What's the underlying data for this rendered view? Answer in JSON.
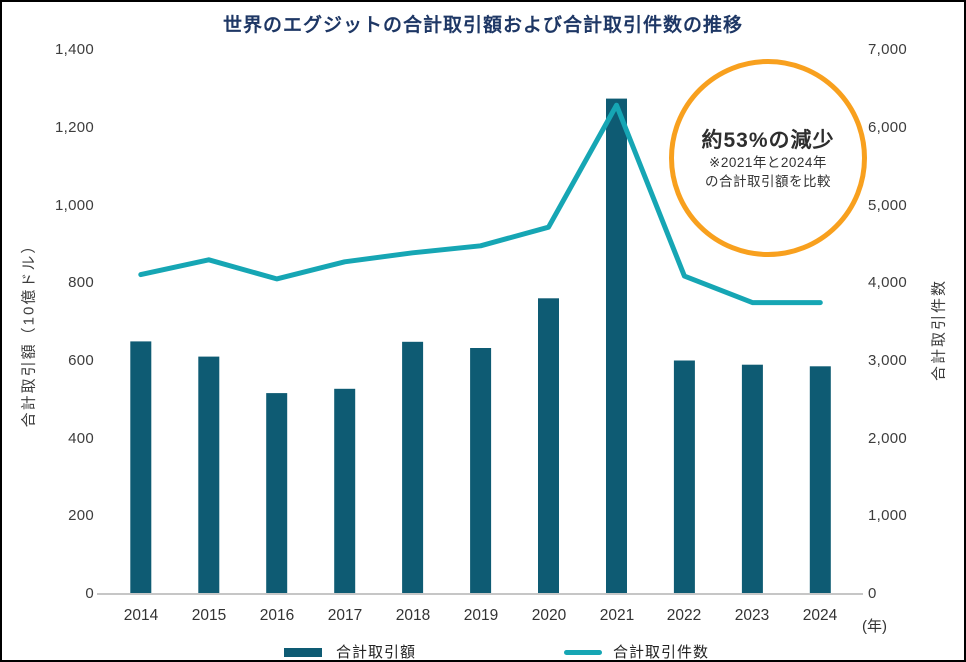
{
  "title": {
    "text": "世界のエグジットの合計取引額および合計取引件数の推移",
    "color": "#1e3765"
  },
  "annotation": {
    "headline": "約53%の減少",
    "note_line1": "※2021年と2024年",
    "note_line2": "の合計取引額を比較",
    "circle_color": "#f8a01e"
  },
  "axes": {
    "left": {
      "title": "合計取引額（10億ドル）",
      "ticks": [
        "1,400",
        "1,200",
        "1,000",
        "800",
        "600",
        "400",
        "200",
        "0"
      ]
    },
    "right": {
      "title": "合計取引件数",
      "ticks": [
        "7,000",
        "6,000",
        "5,000",
        "4,000",
        "3,000",
        "2,000",
        "1,000",
        "0"
      ]
    },
    "x": {
      "labels": [
        "2014",
        "2015",
        "2016",
        "2017",
        "2018",
        "2019",
        "2020",
        "2021",
        "2022",
        "2023",
        "2024"
      ],
      "unit": "(年)"
    }
  },
  "legend": {
    "bar_label": "合計取引額",
    "line_label": "合計取引件数"
  },
  "colors": {
    "bar": "#0e5b73",
    "line": "#16a6b4",
    "title_text": "#1e3765",
    "baseline": "#c6c6c6"
  },
  "chart_data": {
    "type": "bar",
    "title": "世界のエグジットの合計取引額および合計取引件数の推移",
    "categories": [
      2014,
      2015,
      2016,
      2017,
      2018,
      2019,
      2020,
      2021,
      2022,
      2023,
      2024
    ],
    "xlabel": "(年)",
    "grid": false,
    "legend_position": "bottom",
    "series": [
      {
        "name": "合計取引額",
        "type": "bar",
        "axis": "left",
        "axis_label": "合計取引額（10億ドル）",
        "ylim": [
          0,
          1400
        ],
        "color": "#0e5b73",
        "values": [
          650,
          611,
          517,
          528,
          649,
          633,
          761,
          1275,
          601,
          590,
          586
        ]
      },
      {
        "name": "合計取引件数",
        "type": "line",
        "axis": "right",
        "axis_label": "合計取引件数",
        "ylim": [
          0,
          7000
        ],
        "color": "#16a6b4",
        "values": [
          4110,
          4300,
          4055,
          4275,
          4390,
          4480,
          4720,
          6290,
          4090,
          3750,
          3750
        ]
      }
    ],
    "annotation": "約53%の減少 ※2021年と2024年の合計取引額を比較"
  }
}
